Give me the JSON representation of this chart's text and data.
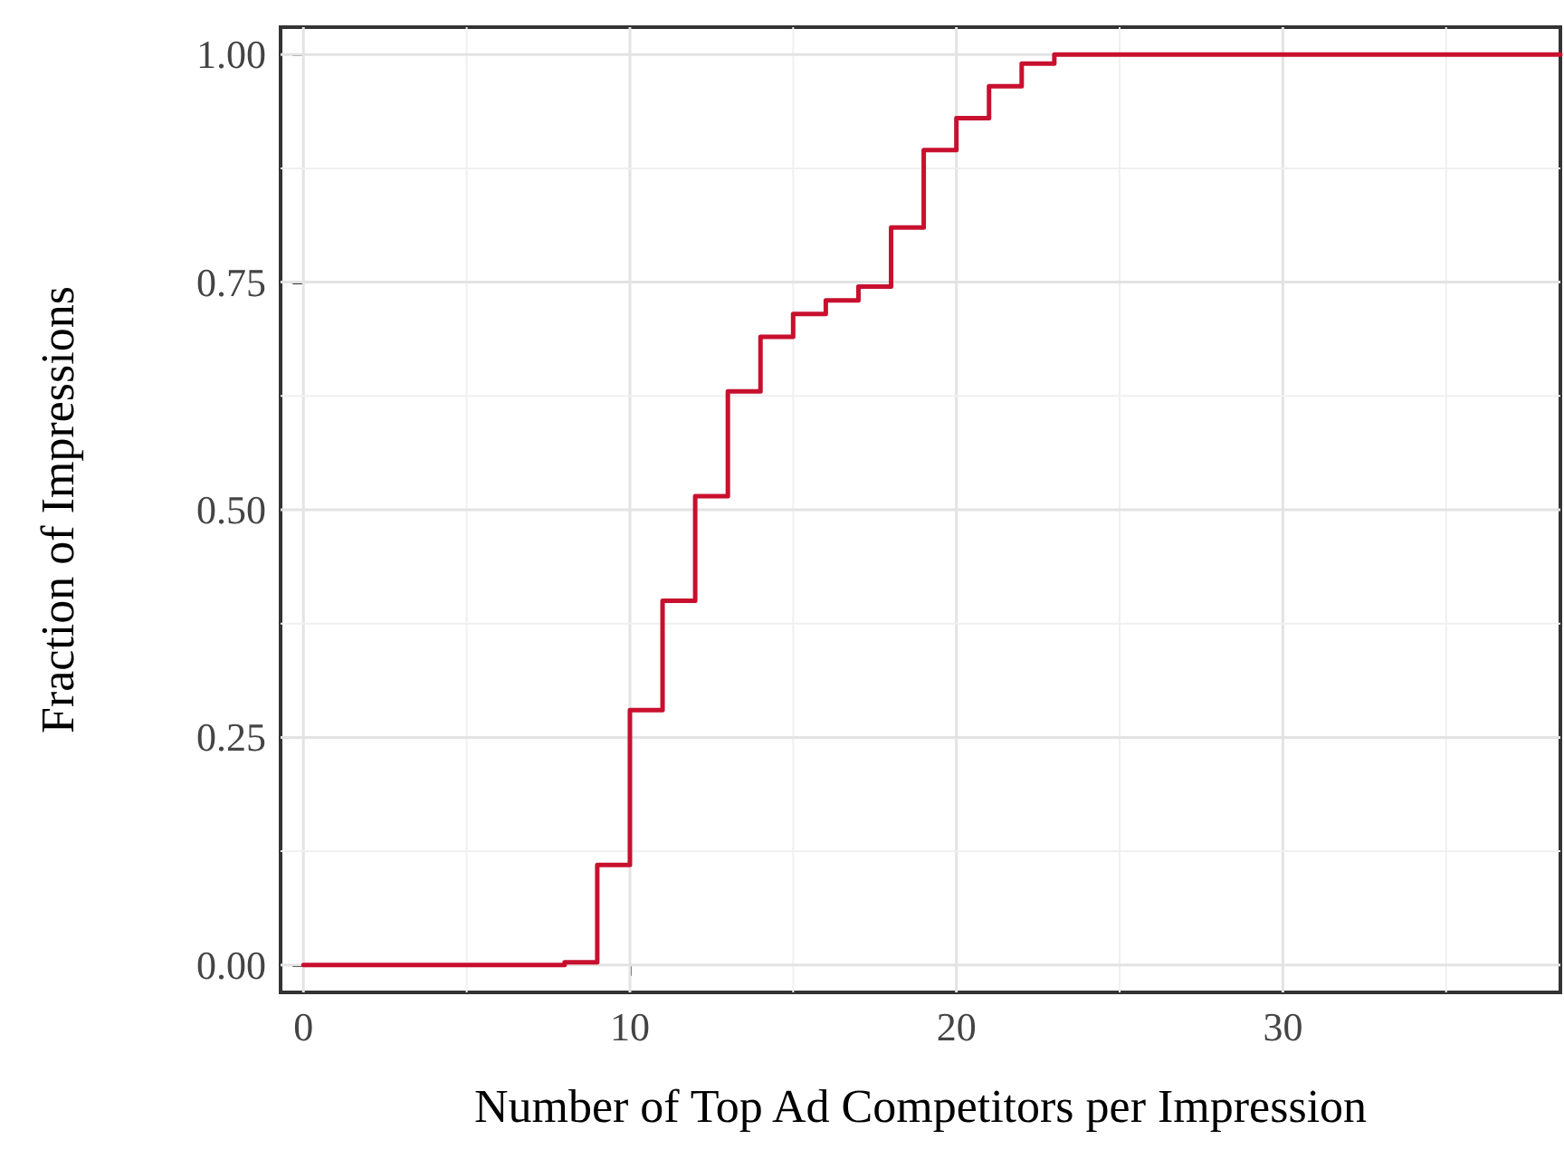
{
  "chart_data": {
    "type": "step",
    "xlabel": "Number of Top Ad Competitors per Impression",
    "ylabel": "Fraction of Impressions",
    "x": [
      0,
      8,
      9,
      10,
      11,
      12,
      13,
      14,
      15,
      16,
      17,
      18,
      19,
      20,
      21,
      22,
      23,
      38.5
    ],
    "values": [
      0,
      0.003,
      0.11,
      0.28,
      0.4,
      0.515,
      0.63,
      0.69,
      0.715,
      0.73,
      0.745,
      0.81,
      0.895,
      0.93,
      0.965,
      0.99,
      1.0,
      1.0
    ],
    "color": "#c8102e",
    "xlim": [
      -0.7,
      38.5
    ],
    "xticks": [
      0,
      {
        "value": 5,
        "label": null
      },
      10,
      {
        "value": 15,
        "label": null
      },
      20,
      {
        "value": 25,
        "label": null
      },
      30,
      {
        "value": 35,
        "label": null
      }
    ],
    "ylim": [
      -0.03,
      1.03
    ],
    "yticks": [
      {
        "value": 0,
        "label": "0.00"
      },
      {
        "value": 0.125,
        "label": null
      },
      {
        "value": 0.25,
        "label": "0.25"
      },
      {
        "value": 0.375,
        "label": null
      },
      {
        "value": 0.5,
        "label": "0.50"
      },
      {
        "value": 0.625,
        "label": null
      },
      {
        "value": 0.75,
        "label": "0.75"
      },
      {
        "value": 0.875,
        "label": null
      },
      {
        "value": 1,
        "label": "1.00"
      }
    ],
    "grid": true,
    "marker": "none",
    "line_style": "solid"
  }
}
